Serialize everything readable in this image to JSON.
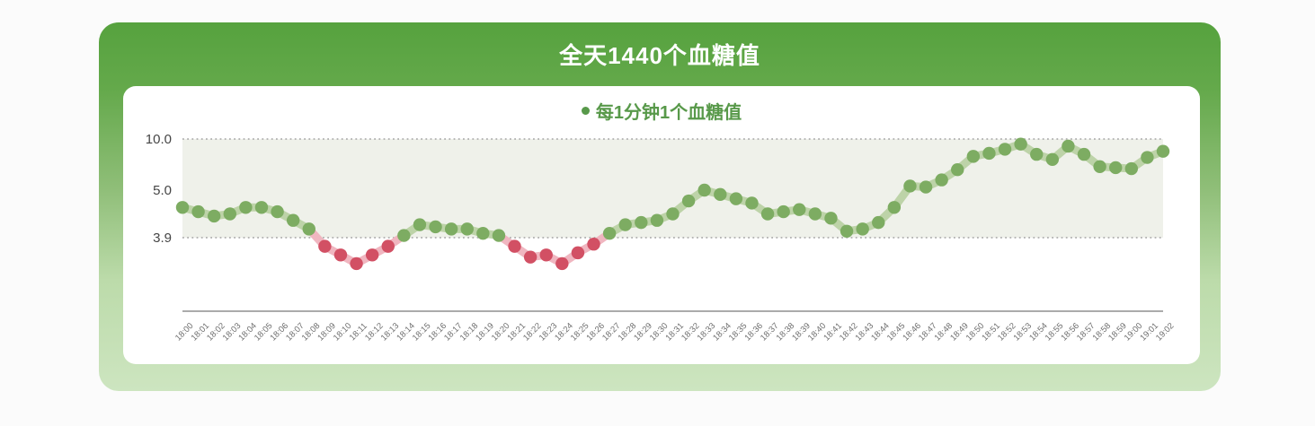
{
  "card": {
    "title": "全天1440个血糖值",
    "legend": "每1分钟1个血糖值"
  },
  "chart_data": {
    "type": "line",
    "title": "全天1440个血糖值",
    "subtitle_legend": "每1分钟1个血糖值",
    "legend_position": "top-center",
    "x": [
      "18:00",
      "18:01",
      "18:02",
      "18:03",
      "18:04",
      "18:05",
      "18:06",
      "18:07",
      "18:08",
      "18:09",
      "18:10",
      "18:11",
      "18:12",
      "18:13",
      "18:14",
      "18:15",
      "18:16",
      "18:17",
      "18:18",
      "18:19",
      "18:20",
      "18:21",
      "18:22",
      "18:23",
      "18:24",
      "18:25",
      "18:26",
      "18:27",
      "18:28",
      "18:29",
      "18:30",
      "18:31",
      "18:32",
      "18:33",
      "18:34",
      "18:35",
      "18:36",
      "18:37",
      "18:38",
      "18:39",
      "18:40",
      "18:41",
      "18:42",
      "18:43",
      "18:44",
      "18:45",
      "18:46",
      "18:47",
      "18:48",
      "18:49",
      "18:50",
      "18:51",
      "18:52",
      "18:53",
      "18:54",
      "18:55",
      "18:56",
      "18:57",
      "18:58",
      "18:59",
      "19:00",
      "19:01",
      "19:02"
    ],
    "values": [
      4.6,
      4.5,
      4.4,
      4.45,
      4.6,
      4.6,
      4.5,
      4.3,
      4.1,
      3.7,
      3.5,
      3.3,
      3.5,
      3.7,
      3.95,
      4.2,
      4.15,
      4.1,
      4.1,
      4.0,
      3.95,
      3.7,
      3.45,
      3.5,
      3.3,
      3.55,
      3.75,
      4.0,
      4.2,
      4.25,
      4.3,
      4.45,
      4.75,
      5.0,
      4.9,
      4.8,
      4.7,
      4.45,
      4.5,
      4.55,
      4.45,
      4.35,
      4.05,
      4.1,
      4.25,
      4.6,
      5.4,
      5.3,
      6.0,
      7.0,
      8.3,
      8.6,
      9.0,
      9.5,
      8.5,
      8.0,
      9.3,
      8.5,
      7.3,
      7.2,
      7.1,
      8.2,
      8.8
    ],
    "low_threshold": 3.9,
    "y_ticks": [
      {
        "label": "10.0",
        "value": 10.0
      },
      {
        "label": "5.0",
        "value": 5.0
      },
      {
        "label": "3.9",
        "value": 3.9
      }
    ],
    "grid_lines_at": [
      10.0,
      3.9
    ],
    "grid_style": "dotted",
    "shaded_band": [
      3.9,
      10.0
    ],
    "y_scale_note": "piecewise: 3.9-5.0 expanded, 5.0-10.0 compressed",
    "colors": {
      "point_normal": "#7dac62",
      "point_low": "#d25064",
      "connector_normal": "#bdd3a8",
      "connector_low": "#f0b6c0",
      "band_bg": "#eff1ea",
      "grid": "#a3a3a3",
      "axis": "#8f8f8f",
      "x_tick_text": "#6e6e6e",
      "y_tick_text": "#454545"
    }
  },
  "theme": {
    "card_green_top": "#56a23e",
    "card_green_bottom": "#cde5c0",
    "title_text": "#ffffff",
    "legend_text": "#58994a",
    "panel_bg": "#ffffff"
  }
}
